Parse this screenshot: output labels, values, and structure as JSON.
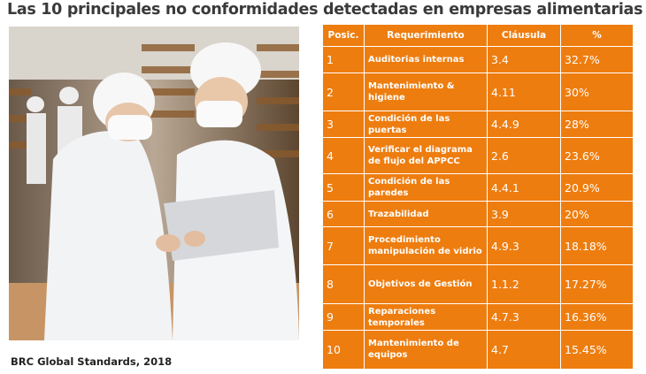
{
  "title": "Las 10 principales no conformidades detectadas en empresas alimentarias",
  "caption": "BRC Global Standards, 2018",
  "colors": {
    "accent": "#ee7d0f",
    "title": "#3a3a3a"
  },
  "table": {
    "headers": [
      "Posic.",
      "Requerimiento",
      "Cláusula",
      "%"
    ],
    "rows": [
      {
        "pos": "1",
        "req": "Auditorias internas",
        "clause": "3.4",
        "pct": "32.7%"
      },
      {
        "pos": "2",
        "req": "Mantenimiento & higiene",
        "clause": "4.11",
        "pct": "30%"
      },
      {
        "pos": "3",
        "req": "Condición de las puertas",
        "clause": "4.4.9",
        "pct": "28%"
      },
      {
        "pos": "4",
        "req": "Verificar el diagrama de flujo del APPCC",
        "clause": "2.6",
        "pct": "23.6%"
      },
      {
        "pos": "5",
        "req": "Condición de las paredes",
        "clause": "4.4.1",
        "pct": "20.9%"
      },
      {
        "pos": "6",
        "req": "Trazabilidad",
        "clause": "3.9",
        "pct": "20%"
      },
      {
        "pos": "7",
        "req": "Procedimiento manipulación de vidrio",
        "clause": "4.9.3",
        "pct": "18.18%"
      },
      {
        "pos": "8",
        "req": "Objetivos de Gestión",
        "clause": "1.1.2",
        "pct": "17.27%"
      },
      {
        "pos": "9",
        "req": "Reparaciones temporales",
        "clause": "4.7.3",
        "pct": "16.36%"
      },
      {
        "pos": "10",
        "req": "Mantenimiento de equipos",
        "clause": "4.7",
        "pct": "15.45%"
      }
    ]
  }
}
